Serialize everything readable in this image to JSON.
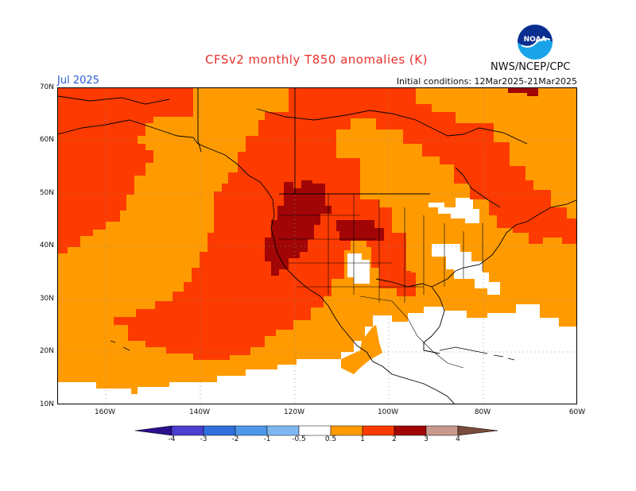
{
  "header": {
    "title": "CFSv2 monthly T850 anomalies (K)",
    "month": "Jul 2025",
    "initial_conditions": "Initial conditions: 12Mar2025-21Mar2025",
    "agency": "NWS/NCEP/CPC",
    "logo_text": "NOAA"
  },
  "axes": {
    "lat_labels": [
      "70N",
      "60N",
      "50N",
      "40N",
      "30N",
      "20N",
      "10N"
    ],
    "lon_labels": [
      "160W",
      "140W",
      "120W",
      "100W",
      "80W",
      "60W"
    ]
  },
  "colorbar": {
    "labels": [
      "-4",
      "-3",
      "-2",
      "-1",
      "-0.5",
      "0.5",
      "1",
      "2",
      "3",
      "4"
    ],
    "colors": [
      "#2a0f8f",
      "#4a3fd0",
      "#2f6fdc",
      "#4d97ea",
      "#7fb8f1",
      "#ffffff",
      "#ff9b00",
      "#fd3b00",
      "#a10505",
      "#c59a8d",
      "#7a4a3b"
    ]
  },
  "map_colors": {
    "neutral": "#ffffff",
    "anom_0_5_1": "#ff9b00",
    "anom_1_2": "#fd3b00",
    "anom_2_3": "#a10505"
  }
}
